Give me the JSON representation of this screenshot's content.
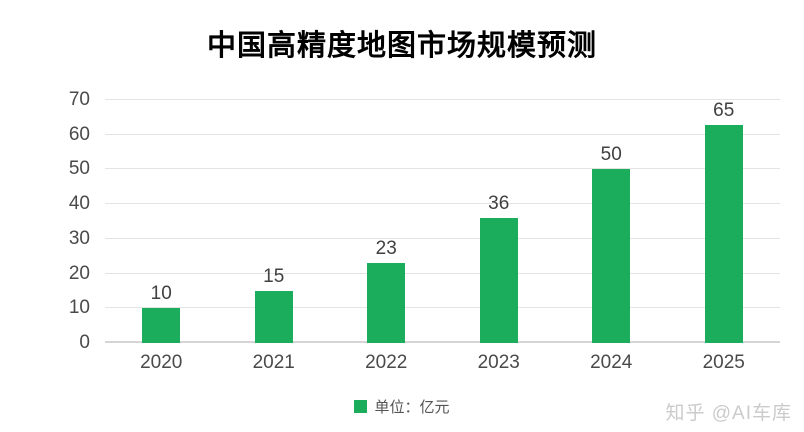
{
  "title": "中国高精度地图市场规模预测",
  "chart_data": {
    "type": "bar",
    "categories": [
      "2020",
      "2021",
      "2022",
      "2023",
      "2024",
      "2025"
    ],
    "values": [
      10,
      15,
      23,
      36,
      50,
      65
    ],
    "title": "中国高精度地图市场规模预测",
    "xlabel": "",
    "ylabel": "",
    "ylim": [
      0,
      70
    ],
    "yticks": [
      0,
      10,
      20,
      30,
      40,
      50,
      60,
      70
    ],
    "grid": true,
    "data_labels": true,
    "legend_position": "bottom-center",
    "bar_color": "#1bad5b"
  },
  "legend": {
    "label": "单位：亿元",
    "swatch_color": "#1bad5b"
  },
  "watermark": "知乎 @AI车库",
  "colors": {
    "bar": "#1bad5b",
    "title": "#000000",
    "axis_label": "#4a4a4a",
    "data_label": "#404040",
    "gridline": "#e4e4e4",
    "baseline": "#d6d4d4",
    "watermark": "#cbcbcb",
    "background": "#ffffff"
  }
}
